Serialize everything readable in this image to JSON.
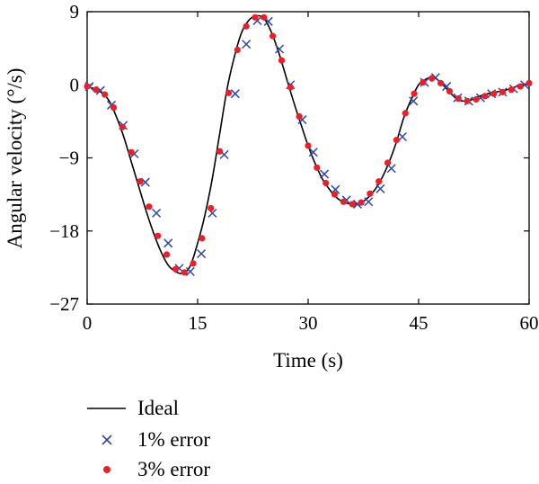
{
  "chart_data": {
    "type": "line",
    "xlabel": "Time (s)",
    "ylabel": "Angular velocity (°/s)",
    "xlim": [
      0,
      60
    ],
    "ylim": [
      -27,
      9
    ],
    "xticks": [
      0,
      15,
      30,
      45,
      60
    ],
    "yticks": [
      -27,
      -18,
      -9,
      0,
      9
    ],
    "x_tick_labels": [
      "0",
      "15",
      "30",
      "45",
      "60"
    ],
    "y_tick_labels": [
      "−27",
      "−18",
      "−9",
      "0",
      "9"
    ],
    "grid": false,
    "legend_position": "bottom-left, below plot",
    "series": [
      {
        "name": "Ideal",
        "style": "line",
        "color": "#000000",
        "x": [
          0,
          1,
          2,
          3,
          4,
          5,
          6,
          7,
          8,
          9,
          10,
          11,
          12,
          13,
          14,
          15,
          16,
          17,
          18,
          19,
          20,
          21,
          22,
          23,
          24,
          25,
          26,
          27,
          28,
          29,
          30,
          31,
          32,
          33,
          34,
          35,
          36,
          37,
          38,
          39,
          40,
          41,
          42,
          43,
          44,
          45,
          46,
          47,
          48,
          49,
          50,
          51,
          52,
          53,
          54,
          55,
          56,
          57,
          58,
          59,
          60
        ],
        "y": [
          -0.2,
          -0.5,
          -1.0,
          -2.0,
          -4.0,
          -6.5,
          -9.5,
          -12.5,
          -15.5,
          -18.2,
          -20.5,
          -22.2,
          -23.0,
          -23.2,
          -22.3,
          -19.5,
          -16.0,
          -11.5,
          -6.0,
          -0.5,
          3.5,
          6.5,
          8.0,
          8.5,
          8.2,
          6.5,
          4.0,
          1.0,
          -2.0,
          -4.8,
          -7.5,
          -9.8,
          -11.7,
          -13.0,
          -14.0,
          -14.5,
          -14.7,
          -14.6,
          -14.0,
          -13.0,
          -11.5,
          -9.5,
          -7.0,
          -4.0,
          -1.8,
          0.0,
          0.7,
          0.9,
          0.3,
          -0.7,
          -1.6,
          -2.0,
          -1.9,
          -1.5,
          -1.2,
          -1.0,
          -0.8,
          -0.6,
          -0.3,
          0.0,
          0.2
        ]
      },
      {
        "name": "1% error",
        "style": "x-marker",
        "color": "#2f48a8",
        "x": [
          0.3,
          1.8,
          3.3,
          4.9,
          6.4,
          7.9,
          9.4,
          11.0,
          12.5,
          14.0,
          15.5,
          17.0,
          18.6,
          20.1,
          21.6,
          23.1,
          24.6,
          26.1,
          27.6,
          29.2,
          30.7,
          32.2,
          33.7,
          35.2,
          36.7,
          38.2,
          39.8,
          41.3,
          42.8,
          44.3,
          45.8,
          47.3,
          48.8,
          50.3,
          51.8,
          53.4,
          54.9,
          56.4,
          57.9,
          59.4
        ],
        "y": [
          -0.2,
          -0.7,
          -2.5,
          -5.0,
          -8.5,
          -12.0,
          -15.8,
          -19.5,
          -22.6,
          -23.0,
          -20.8,
          -15.8,
          -8.6,
          -1.1,
          5.0,
          7.9,
          7.8,
          4.4,
          0.0,
          -4.3,
          -8.3,
          -11.0,
          -12.9,
          -14.2,
          -14.7,
          -14.4,
          -12.8,
          -10.3,
          -6.4,
          -2.0,
          0.3,
          0.9,
          -0.2,
          -1.6,
          -2.0,
          -1.6,
          -1.1,
          -0.9,
          -0.5,
          0.0
        ]
      },
      {
        "name": "3% error",
        "style": "dot-marker",
        "color": "#e8202a",
        "x": [
          0.0,
          1.2,
          2.4,
          3.6,
          4.8,
          6.0,
          7.2,
          8.4,
          9.6,
          10.8,
          12.0,
          13.2,
          14.4,
          15.6,
          16.8,
          18.0,
          19.2,
          20.4,
          21.6,
          22.8,
          24.0,
          25.2,
          26.4,
          27.6,
          28.8,
          30.0,
          31.2,
          32.4,
          33.6,
          34.8,
          36.0,
          37.2,
          38.4,
          39.6,
          40.8,
          42.0,
          43.2,
          44.4,
          45.6,
          46.8,
          48.0,
          49.2,
          50.4,
          51.6,
          52.8,
          54.0,
          55.2,
          56.4,
          57.6,
          58.8,
          60.0
        ],
        "y": [
          -0.2,
          -0.6,
          -1.2,
          -2.8,
          -5.2,
          -8.3,
          -11.9,
          -15.0,
          -18.6,
          -20.9,
          -22.7,
          -23.1,
          -22.0,
          -18.9,
          -15.2,
          -8.2,
          -1.0,
          4.3,
          7.2,
          8.3,
          8.3,
          6.0,
          3.0,
          -0.3,
          -3.9,
          -7.5,
          -10.2,
          -12.1,
          -13.5,
          -14.4,
          -14.7,
          -14.5,
          -13.4,
          -11.9,
          -9.6,
          -6.8,
          -3.5,
          -1.1,
          0.3,
          0.8,
          0.2,
          -0.8,
          -1.7,
          -2.0,
          -1.8,
          -1.4,
          -1.1,
          -0.9,
          -0.6,
          -0.2,
          0.2
        ]
      }
    ]
  }
}
